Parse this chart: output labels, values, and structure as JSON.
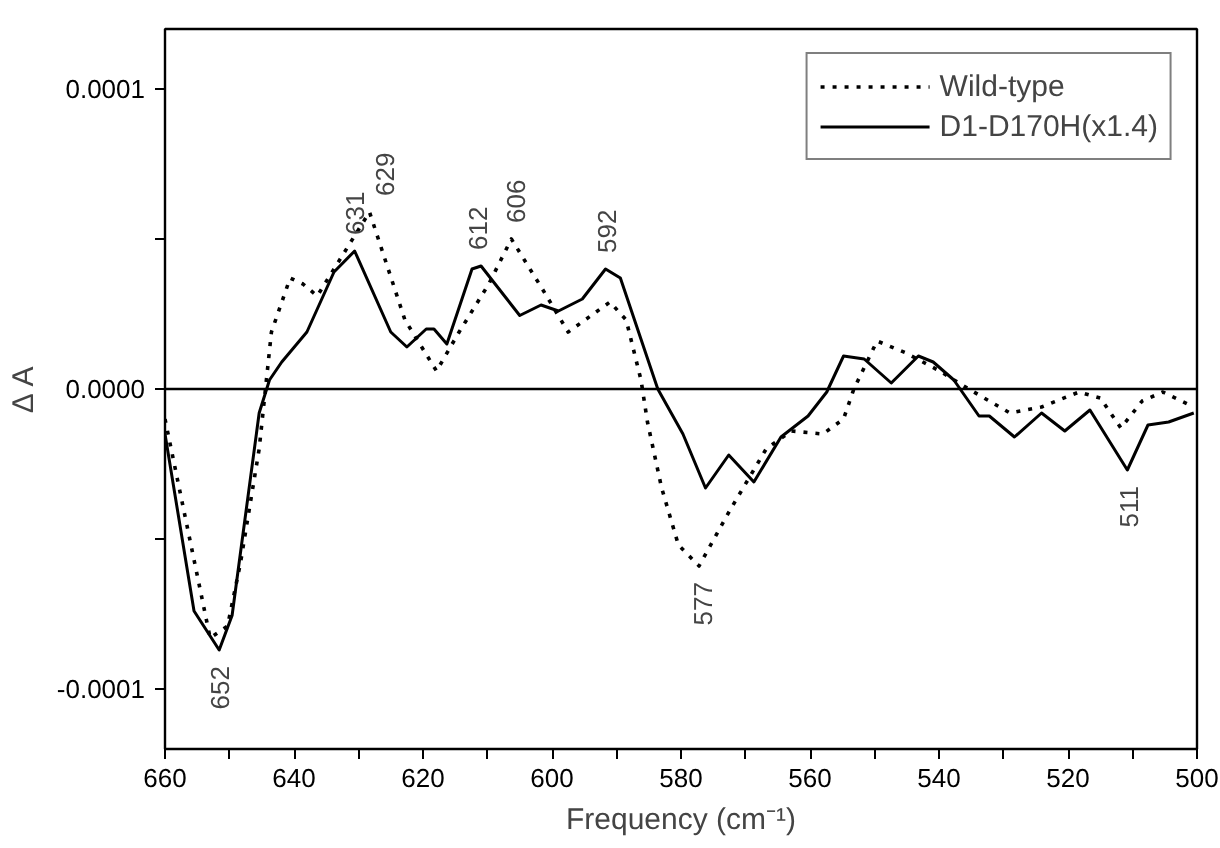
{
  "chart_data": {
    "type": "line",
    "xlabel": "Frequency (cm⁻¹)",
    "ylabel": "Δ A",
    "xlim": [
      660,
      500
    ],
    "ylim": [
      -0.00012,
      0.00012
    ],
    "xticks": [
      660,
      {
        "value": 650,
        "label": null
      },
      640,
      {
        "value": 630,
        "label": null
      },
      620,
      {
        "value": 610,
        "label": null
      },
      600,
      {
        "value": 590,
        "label": null
      },
      580,
      {
        "value": 570,
        "label": null
      },
      560,
      {
        "value": 550,
        "label": null
      },
      540,
      {
        "value": 530,
        "label": null
      },
      520,
      {
        "value": 510,
        "label": null
      },
      500
    ],
    "yticks": [
      {
        "value": 0.0001,
        "label": "0.0001"
      },
      {
        "value": 5e-05,
        "label": null
      },
      {
        "value": 0,
        "label": "0.0000"
      },
      {
        "value": -5e-05,
        "label": null
      },
      {
        "value": -0.0001,
        "label": "-0.0001"
      }
    ],
    "grid": false,
    "legend": "top right",
    "series": [
      {
        "name": "Wild-type",
        "color": "#000000",
        "line_style": "dotted",
        "x": [
          660,
          653,
          650.3,
          648.3,
          645.4,
          643.5,
          640.6,
          638.6,
          636.4,
          628.3,
          622.8,
          617.9,
          614.4,
          609.8,
          606.3,
          601.4,
          597.5,
          591,
          588.5,
          586.2,
          585.2,
          583,
          580.4,
          577.2,
          572.3,
          566.8,
          562.9,
          558,
          554.8,
          553.2,
          549.6,
          545.1,
          539.9,
          535.4,
          532.2,
          529,
          524.1,
          518.3,
          515,
          511.8,
          508.5,
          505.3,
          500.5
        ],
        "values": [
          -1e-05,
          -8.3e-05,
          -7.9e-05,
          -5.8e-05,
          -2e-05,
          1.9e-05,
          3.7e-05,
          3.5e-05,
          3.1e-05,
          5.9e-05,
          2.3e-05,
          6e-06,
          1.9e-05,
          3.5e-05,
          5e-05,
          3.3e-05,
          1.9e-05,
          2.9e-05,
          2.3e-05,
          3e-06,
          -1.1e-05,
          -3.3e-05,
          -5.2e-05,
          -5.9e-05,
          -4e-05,
          -2e-05,
          -1.4e-05,
          -1.5e-05,
          -1e-05,
          0,
          1.6e-05,
          1.2e-05,
          6e-06,
          0,
          -4e-06,
          -8e-06,
          -6e-06,
          -1e-06,
          -3e-06,
          -1.3e-05,
          -4e-06,
          -1e-06,
          -6e-06
        ]
      },
      {
        "name": "D1-D170H(x1.4)",
        "color": "#000000",
        "line_style": "solid",
        "x": [
          660,
          655.5,
          651.6,
          649.6,
          645.4,
          643.8,
          641.9,
          638,
          633.8,
          630.6,
          625,
          622.5,
          619.5,
          618.3,
          616.3,
          612.4,
          611,
          605,
          601.7,
          599,
          595.3,
          591.7,
          589.4,
          583.6,
          579.7,
          576.2,
          572.6,
          568.7,
          564.5,
          560.3,
          557.4,
          554.8,
          551.6,
          547.4,
          543.2,
          540.9,
          537.7,
          533.8,
          532.2,
          528.3,
          524.1,
          520.5,
          516.6,
          510.8,
          507.6,
          504.4,
          500.5
        ],
        "values": [
          -1.5e-05,
          -7.4e-05,
          -8.7e-05,
          -7.55e-05,
          -8e-06,
          3e-06,
          9e-06,
          1.9e-05,
          3.9e-05,
          4.6e-05,
          1.9e-05,
          1.4e-05,
          2e-05,
          2e-05,
          1.5e-05,
          4e-05,
          4.1e-05,
          2.45e-05,
          2.8e-05,
          2.6e-05,
          3e-05,
          4e-05,
          3.7e-05,
          0,
          -1.5e-05,
          -3.3e-05,
          -2.2e-05,
          -3.1e-05,
          -1.6e-05,
          -9e-06,
          -1e-06,
          1.1e-05,
          1e-05,
          2e-06,
          1.1e-05,
          9e-06,
          3e-06,
          -9e-06,
          -9e-06,
          -1.6e-05,
          -8e-06,
          -1.4e-05,
          -7e-06,
          -2.7e-05,
          -1.2e-05,
          -1.1e-05,
          -8e-06
        ]
      }
    ],
    "ref_lines": [
      {
        "axis": "y",
        "value": 0,
        "color": "#000000",
        "line_style": "solid"
      }
    ],
    "annotations": [
      {
        "text": "631",
        "x": 631,
        "y": 4.6e-05
      },
      {
        "text": "629",
        "x": 629,
        "y": 5.9e-05
      },
      {
        "text": "612",
        "x": 612,
        "y": 4.1e-05
      },
      {
        "text": "606",
        "x": 606,
        "y": 5e-05
      },
      {
        "text": "592",
        "x": 592,
        "y": 4e-05
      },
      {
        "text": "652",
        "x": 652,
        "y": -8.7e-05
      },
      {
        "text": "577",
        "x": 577,
        "y": -5.9e-05
      },
      {
        "text": "511",
        "x": 511,
        "y": -2.7e-05
      }
    ]
  }
}
